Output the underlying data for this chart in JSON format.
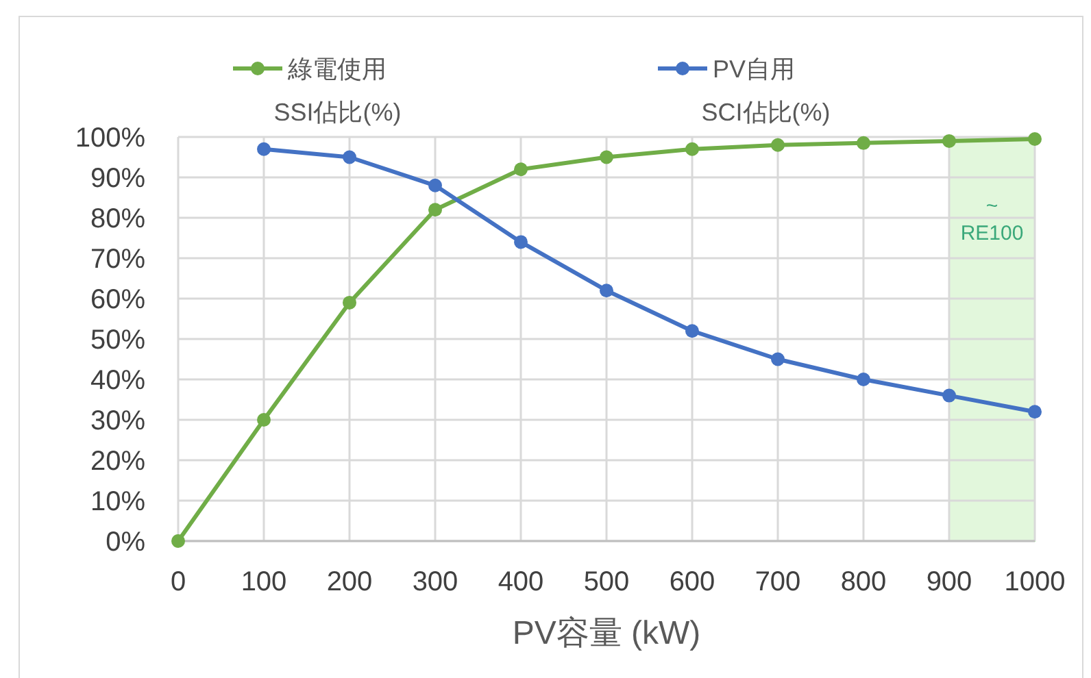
{
  "chart_data": {
    "type": "line",
    "xlabel": "PV容量 (kW)",
    "x": [
      0,
      100,
      200,
      300,
      400,
      500,
      600,
      700,
      800,
      900,
      1000
    ],
    "series": [
      {
        "name": "綠電使用",
        "color": "#70ad47",
        "values": [
          0,
          30,
          59,
          82,
          92,
          95,
          97,
          98,
          98.5,
          99,
          99.5
        ]
      },
      {
        "name": "PV自用",
        "color": "#4472c4",
        "x": [
          100,
          200,
          300,
          400,
          500,
          600,
          700,
          800,
          900,
          1000
        ],
        "values": [
          97,
          95,
          88,
          74,
          62,
          52,
          45,
          40,
          36,
          32
        ]
      }
    ],
    "xlim": [
      0,
      1000
    ],
    "xticks": [
      0,
      100,
      200,
      300,
      400,
      500,
      600,
      700,
      800,
      900,
      1000
    ],
    "ylim": [
      0,
      100
    ],
    "yticks": [
      {
        "value": 0,
        "label": "0%"
      },
      {
        "value": 10,
        "label": "10%"
      },
      {
        "value": 20,
        "label": "20%"
      },
      {
        "value": 30,
        "label": "30%"
      },
      {
        "value": 40,
        "label": "40%"
      },
      {
        "value": 50,
        "label": "50%"
      },
      {
        "value": 60,
        "label": "60%"
      },
      {
        "value": 70,
        "label": "70%"
      },
      {
        "value": 80,
        "label": "80%"
      },
      {
        "value": 90,
        "label": "90%"
      },
      {
        "value": 100,
        "label": "100%"
      }
    ],
    "bands": [
      {
        "axis": "x",
        "from": 900,
        "to": 1000,
        "label": "~\nRE100",
        "color": "#e2f7dc"
      }
    ],
    "annotations": [
      "SSI佔比(%)",
      "SCI佔比(%)"
    ],
    "grid": true,
    "legend": "top",
    "marker": "circle",
    "line_style": "solid"
  }
}
